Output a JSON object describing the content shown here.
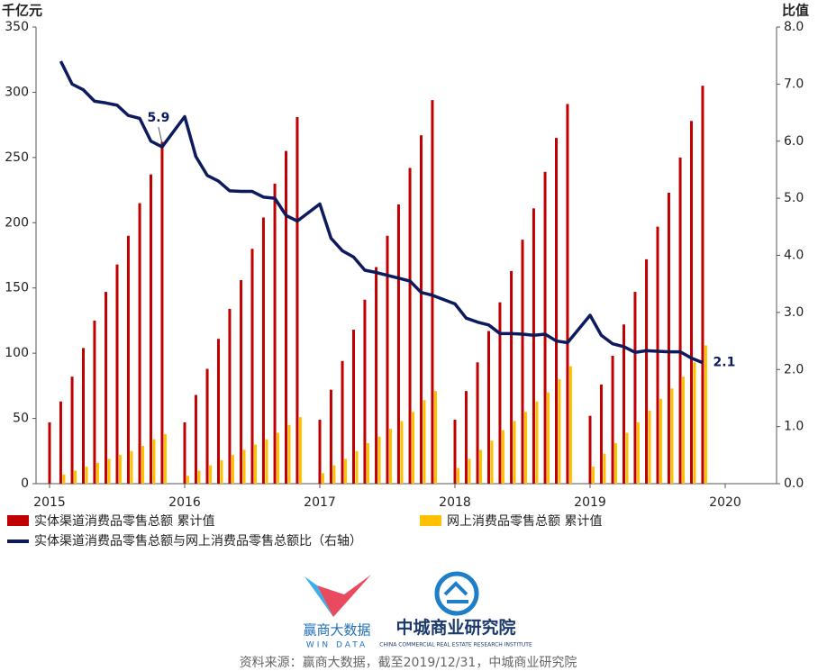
{
  "chart_data": {
    "type": "bar_line",
    "y_label": "千亿元",
    "y2_label": "比值",
    "x": [
      2015,
      2015.083,
      2015.167,
      2015.25,
      2015.333,
      2015.417,
      2015.5,
      2015.583,
      2015.667,
      2015.75,
      2015.833,
      2016,
      2016.083,
      2016.167,
      2016.25,
      2016.333,
      2016.417,
      2016.5,
      2016.583,
      2016.667,
      2016.75,
      2016.833,
      2017,
      2017.083,
      2017.167,
      2017.25,
      2017.333,
      2017.417,
      2017.5,
      2017.583,
      2017.667,
      2017.75,
      2017.833,
      2018,
      2018.083,
      2018.167,
      2018.25,
      2018.333,
      2018.417,
      2018.5,
      2018.583,
      2018.667,
      2018.75,
      2018.833,
      2019,
      2019.083,
      2019.167,
      2019.25,
      2019.333,
      2019.417,
      2019.5,
      2019.583,
      2019.667,
      2019.75,
      2019.833
    ],
    "series": [
      {
        "name": "实体渠道消费品零售总额 累计值",
        "kind": "bar",
        "color": "#c00000",
        "values": [
          47,
          63,
          82,
          104,
          125,
          147,
          168,
          190,
          215,
          237,
          262,
          47,
          68,
          88,
          111,
          134,
          156,
          180,
          204,
          230,
          255,
          281,
          49,
          72,
          94,
          118,
          141,
          166,
          190,
          214,
          242,
          267,
          294,
          49,
          71,
          93,
          117,
          139,
          163,
          187,
          211,
          239,
          265,
          291,
          52,
          76,
          98,
          122,
          147,
          172,
          197,
          223,
          250,
          278,
          305
        ]
      },
      {
        "name": "网上消费品零售总额 累计值",
        "kind": "bar",
        "color": "#ffc000",
        "values": [
          null,
          7,
          10,
          13,
          16,
          19,
          22,
          25,
          29,
          34,
          38,
          6,
          10,
          14,
          18,
          22,
          26,
          30,
          34,
          39,
          45,
          51,
          8,
          14,
          19,
          25,
          31,
          36,
          42,
          48,
          55,
          64,
          71,
          12,
          19,
          26,
          33,
          41,
          48,
          55,
          63,
          70,
          80,
          90,
          13,
          23,
          31,
          39,
          47,
          56,
          65,
          73,
          82,
          93,
          106
        ]
      },
      {
        "name": "实体渠道消费品零售总额与网上消费品零售总额比（右轴）",
        "kind": "line",
        "color": "#0d1b5e",
        "axis": "y2",
        "values": [
          null,
          7.4,
          7.0,
          6.9,
          6.7,
          6.67,
          6.63,
          6.45,
          6.4,
          6.0,
          5.9,
          6.43,
          5.73,
          5.4,
          5.3,
          5.13,
          5.12,
          5.12,
          5.02,
          5.0,
          4.7,
          4.6,
          4.9,
          4.3,
          4.08,
          3.97,
          3.74,
          3.7,
          3.65,
          3.6,
          3.55,
          3.35,
          3.3,
          3.15,
          2.9,
          2.83,
          2.78,
          2.63,
          2.63,
          2.62,
          2.6,
          2.62,
          2.5,
          2.47,
          2.95,
          2.6,
          2.45,
          2.4,
          2.3,
          2.33,
          2.32,
          2.31,
          2.31,
          2.2,
          2.12
        ]
      }
    ],
    "annotations": [
      {
        "text": "5.9",
        "x": 2015.833,
        "y": 5.9
      },
      {
        "text": "2.1",
        "x": 2019.833,
        "y": 2.12
      }
    ],
    "xlim": [
      2014.9,
      2020.38
    ],
    "xticks": [
      2015,
      2016,
      2017,
      2018,
      2019,
      2020
    ],
    "ylim": [
      0,
      350
    ],
    "yticks": [
      0,
      50,
      100,
      150,
      200,
      250,
      300,
      350
    ],
    "y2lim": [
      0,
      8
    ],
    "y2ticks": [
      {
        "value": 0,
        "label": "0.0"
      },
      {
        "value": 1,
        "label": "1.0"
      },
      {
        "value": 2,
        "label": "2.0"
      },
      {
        "value": 3,
        "label": "3.0"
      },
      {
        "value": 4,
        "label": "4.0"
      },
      {
        "value": 5,
        "label": "5.0"
      },
      {
        "value": 6,
        "label": "6.0"
      },
      {
        "value": 7,
        "label": "7.0"
      },
      {
        "value": 8,
        "label": "8.0"
      }
    ]
  },
  "footer": {
    "logo1_cn": "赢商大数据",
    "logo1_en": "WIN DATA",
    "logo2_cn": "中城商业研究院",
    "logo2_en": "CHINA COMMERCIAL REAL ESTATE RESEARCH INSTITUTE",
    "source": "资料来源：赢商大数据，截至2019/12/31，中城商业研究院"
  }
}
